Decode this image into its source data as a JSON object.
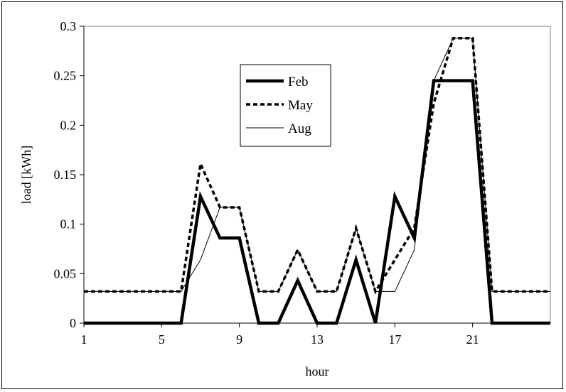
{
  "chart_data": {
    "type": "line",
    "title": "",
    "xlabel": "hour",
    "ylabel": "load [kWh]",
    "x": [
      1,
      2,
      3,
      4,
      5,
      6,
      7,
      8,
      9,
      10,
      11,
      12,
      13,
      14,
      15,
      16,
      17,
      18,
      19,
      20,
      21,
      22,
      23,
      24,
      25
    ],
    "x_tick_labels": [
      "1",
      "5",
      "9",
      "13",
      "17",
      "21"
    ],
    "y_tick_labels": [
      "0",
      "0.05",
      "0.1",
      "0.15",
      "0.2",
      "0.25",
      "0.3"
    ],
    "xlim": [
      1,
      25
    ],
    "ylim": [
      0,
      0.3
    ],
    "grid": false,
    "legend_position": "top-center",
    "series": [
      {
        "name": "Feb",
        "style": "thick-solid",
        "values": [
          0,
          0,
          0,
          0,
          0,
          0,
          0.128,
          0.086,
          0.086,
          0,
          0,
          0.043,
          0,
          0,
          0.064,
          0,
          0.128,
          0.086,
          0.245,
          0.245,
          0.245,
          0,
          0,
          0,
          0
        ]
      },
      {
        "name": "May",
        "style": "dashed",
        "values": [
          0.032,
          0.032,
          0.032,
          0.032,
          0.032,
          0.032,
          0.161,
          0.117,
          0.117,
          0.032,
          0.032,
          0.074,
          0.032,
          0.032,
          0.096,
          0.032,
          0.064,
          0.096,
          0.222,
          0.288,
          0.288,
          0.032,
          0.032,
          0.032,
          0.032
        ]
      },
      {
        "name": "Aug",
        "style": "thin-solid",
        "values": [
          0.032,
          0.032,
          0.032,
          0.032,
          0.032,
          0.032,
          0.064,
          0.117,
          0.117,
          0.032,
          0.032,
          0.074,
          0.032,
          0.032,
          0.096,
          0.032,
          0.032,
          0.074,
          0.245,
          0.288,
          0.288,
          0.032,
          0.032,
          0.032,
          0.032
        ]
      }
    ]
  }
}
